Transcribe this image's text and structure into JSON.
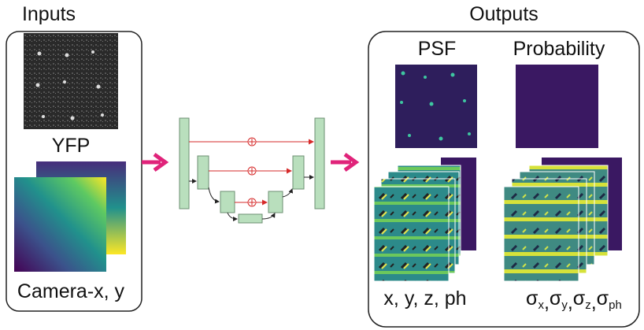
{
  "inputs": {
    "title": "Inputs",
    "image_label": "YFP",
    "coords_label": "Camera-x, y"
  },
  "outputs": {
    "title": "Outputs",
    "columns": [
      "PSF",
      "Probability"
    ],
    "left_label": "x, y, z, ph",
    "right_label": {
      "terms": [
        {
          "base": "σ",
          "sub": "x"
        },
        {
          "base": "σ",
          "sub": "y"
        },
        {
          "base": "σ",
          "sub": "z"
        },
        {
          "base": "σ",
          "sub": "ph"
        }
      ],
      "separator": ","
    }
  }
}
